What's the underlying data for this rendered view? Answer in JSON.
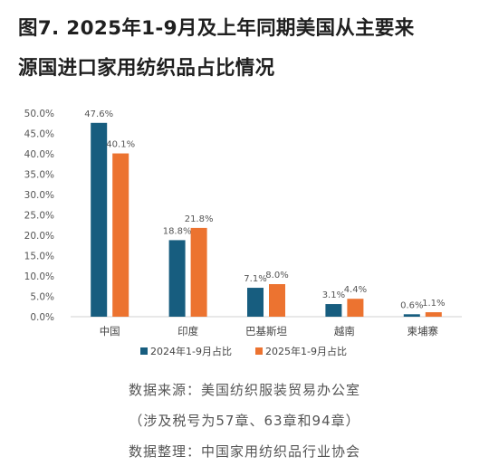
{
  "title": {
    "line1": "图7. 2025年1-9月及上年同期美国从主要来",
    "line2": "源国进口家用纺织品占比情况"
  },
  "colors": {
    "series1": "#175d7f",
    "series2": "#ec7330",
    "axis": "#d0d0d0",
    "tick": "#555555"
  },
  "chart_data": {
    "type": "bar",
    "categories": [
      "中国",
      "印度",
      "巴基斯坦",
      "越南",
      "柬埔寨"
    ],
    "series": [
      {
        "name": "2024年1-9月占比",
        "values": [
          47.6,
          18.8,
          7.1,
          3.1,
          0.6
        ],
        "labels": [
          "47.6%",
          "18.8%",
          "7.1%",
          "3.1%",
          "0.6%"
        ]
      },
      {
        "name": "2025年1-9月占比",
        "values": [
          40.1,
          21.8,
          8.0,
          4.4,
          1.1
        ],
        "labels": [
          "40.1%",
          "21.8%",
          "8.0%",
          "4.4%",
          "1.1%"
        ]
      }
    ],
    "ylim": [
      0,
      50
    ],
    "yticks": [
      "0.0%",
      "5.0%",
      "10.0%",
      "15.0%",
      "20.0%",
      "25.0%",
      "30.0%",
      "35.0%",
      "40.0%",
      "45.0%",
      "50.0%"
    ],
    "legend_position": "bottom",
    "grid": false
  },
  "source": {
    "line1": "数据来源：美国纺织服装贸易办公室",
    "line2": "（涉及税号为57章、63章和94章）",
    "line3": "数据整理：中国家用纺织品行业协会"
  }
}
